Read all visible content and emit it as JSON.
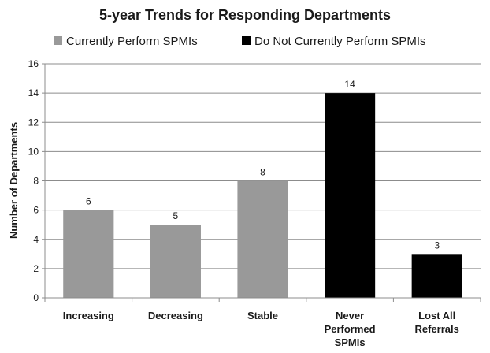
{
  "chart_data": {
    "type": "bar",
    "title": "5-year Trends for Responding Departments",
    "xlabel": "",
    "ylabel": "Number of Departments",
    "ylim": [
      0,
      16
    ],
    "yticks": [
      0,
      2,
      4,
      6,
      8,
      10,
      12,
      14,
      16
    ],
    "grid": true,
    "legend_position": "top",
    "categories": [
      [
        "Increasing"
      ],
      [
        "Decreasing"
      ],
      [
        "Stable"
      ],
      [
        "Never",
        "Performed",
        "SPMIs"
      ],
      [
        "Lost All",
        "Referrals"
      ]
    ],
    "values": [
      6,
      5,
      8,
      14,
      3
    ],
    "bar_groups": [
      0,
      0,
      0,
      1,
      1
    ],
    "groups": [
      {
        "name": "Currently Perform SPMIs",
        "color": "#999999"
      },
      {
        "name": "Do Not Currently Perform SPMIs",
        "color": "#000000"
      }
    ]
  }
}
